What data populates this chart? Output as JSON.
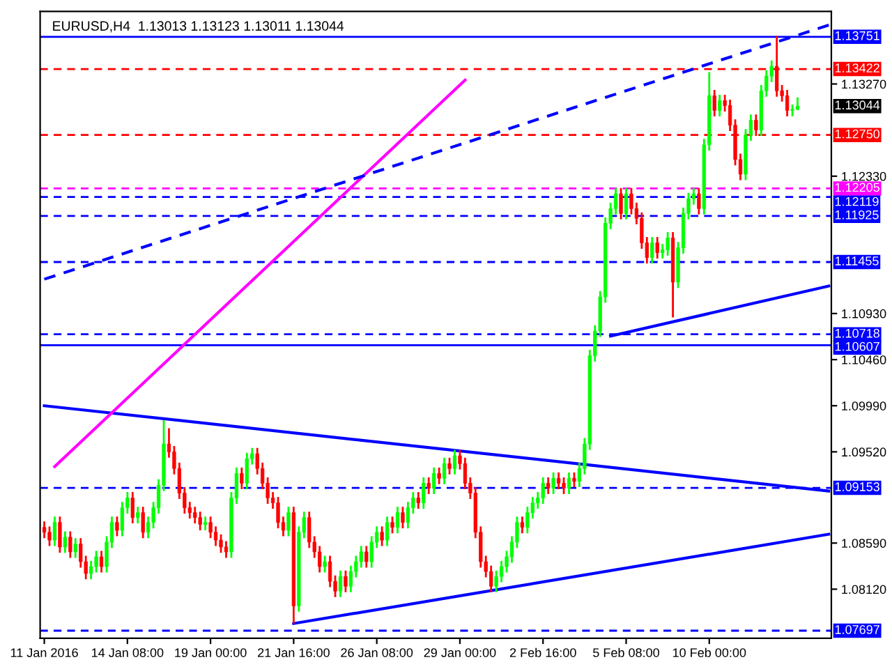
{
  "chart_data": {
    "type": "candlestick",
    "title": "EURUSD,H4  1.13013 1.13123 1.13011 1.13044",
    "categories": [
      "11 Jan 2016",
      null,
      null,
      null,
      null,
      null,
      null,
      null,
      null,
      null,
      null,
      null,
      null,
      null,
      null,
      null,
      "14 Jan 08:00",
      null,
      null,
      null,
      null,
      null,
      null,
      null,
      null,
      null,
      null,
      null,
      null,
      null,
      null,
      null,
      "19 Jan 00:00",
      null,
      null,
      null,
      null,
      null,
      null,
      null,
      null,
      null,
      null,
      null,
      null,
      null,
      null,
      null,
      "21 Jan 16:00",
      null,
      null,
      null,
      null,
      null,
      null,
      null,
      null,
      null,
      null,
      null,
      null,
      null,
      null,
      null,
      "26 Jan 08:00",
      null,
      null,
      null,
      null,
      null,
      null,
      null,
      null,
      null,
      null,
      null,
      null,
      null,
      null,
      null,
      "29 Jan 00:00",
      null,
      null,
      null,
      null,
      null,
      null,
      null,
      null,
      null,
      null,
      null,
      null,
      null,
      null,
      null,
      "2 Feb 16:00",
      null,
      null,
      null,
      null,
      null,
      null,
      null,
      null,
      null,
      null,
      null,
      null,
      null,
      null,
      null,
      "5 Feb 08:00",
      null,
      null,
      null,
      null,
      null,
      null,
      null,
      null,
      null,
      null,
      null,
      null,
      null,
      null,
      null,
      "10 Feb 00:00",
      null,
      null,
      null,
      null,
      null,
      null,
      null,
      null,
      null,
      null,
      null,
      null,
      null,
      null,
      null,
      null,
      null,
      null,
      null,
      null,
      null,
      null,
      null
    ],
    "ohlc": [
      [
        1.0875,
        1.088,
        1.0865,
        1.087
      ],
      [
        1.087,
        1.0875,
        1.0857,
        1.0862
      ],
      [
        1.0862,
        1.0885,
        1.0857,
        1.088
      ],
      [
        1.088,
        1.0885,
        1.085,
        1.0855
      ],
      [
        1.0855,
        1.087,
        1.085,
        1.0865
      ],
      [
        1.0865,
        1.087,
        1.0845,
        1.085
      ],
      [
        1.085,
        1.0863,
        1.0845,
        1.0858
      ],
      [
        1.0858,
        1.0863,
        1.0835,
        1.084
      ],
      [
        1.084,
        1.0845,
        1.0823,
        1.0828
      ],
      [
        1.0828,
        1.084,
        1.0823,
        1.0835
      ],
      [
        1.0835,
        1.085,
        1.083,
        1.0845
      ],
      [
        1.0845,
        1.085,
        1.083,
        1.0835
      ],
      [
        1.0835,
        1.0865,
        1.083,
        1.086
      ],
      [
        1.086,
        1.0885,
        1.0855,
        1.088
      ],
      [
        1.088,
        1.0885,
        1.0867,
        1.0872
      ],
      [
        1.0872,
        1.09,
        1.0867,
        1.0895
      ],
      [
        1.0895,
        1.091,
        1.089,
        1.0905
      ],
      [
        1.0905,
        1.091,
        1.088,
        1.0885
      ],
      [
        1.0885,
        1.0895,
        1.088,
        1.089
      ],
      [
        1.089,
        1.0895,
        1.0865,
        1.087
      ],
      [
        1.087,
        1.0885,
        1.0865,
        1.088
      ],
      [
        1.088,
        1.09,
        1.0875,
        1.0895
      ],
      [
        1.0895,
        1.0923,
        1.089,
        1.0918
      ],
      [
        1.0918,
        1.0983,
        1.0913,
        1.096
      ],
      [
        1.096,
        1.0975,
        1.0947,
        1.0952
      ],
      [
        1.0952,
        1.0957,
        1.093,
        1.0935
      ],
      [
        1.0935,
        1.094,
        1.0905,
        1.091
      ],
      [
        1.091,
        1.0915,
        1.089,
        1.0895
      ],
      [
        1.0895,
        1.09,
        1.0885,
        1.089
      ],
      [
        1.089,
        1.0895,
        1.088,
        1.0885
      ],
      [
        1.0885,
        1.089,
        1.0873,
        1.0878
      ],
      [
        1.0878,
        1.0885,
        1.0873,
        1.088
      ],
      [
        1.088,
        1.0885,
        1.0865,
        1.087
      ],
      [
        1.087,
        1.0875,
        1.0857,
        1.0862
      ],
      [
        1.0862,
        1.0867,
        1.085,
        1.0855
      ],
      [
        1.0855,
        1.086,
        1.0845,
        1.085
      ],
      [
        1.085,
        1.091,
        1.0845,
        1.0905
      ],
      [
        1.0905,
        1.0935,
        1.09,
        1.093
      ],
      [
        1.093,
        1.0935,
        1.0915,
        1.092
      ],
      [
        1.092,
        1.095,
        1.0915,
        1.0945
      ],
      [
        1.0945,
        1.0955,
        1.094,
        1.095
      ],
      [
        1.095,
        1.0955,
        1.093,
        1.0935
      ],
      [
        1.0935,
        1.094,
        1.0915,
        1.092
      ],
      [
        1.092,
        1.0925,
        1.09,
        1.0905
      ],
      [
        1.0905,
        1.091,
        1.0895,
        1.09
      ],
      [
        1.09,
        1.0905,
        1.0875,
        1.088
      ],
      [
        1.088,
        1.0885,
        1.0867,
        1.0872
      ],
      [
        1.0872,
        1.0895,
        1.0867,
        1.089
      ],
      [
        1.089,
        1.0895,
        1.0778,
        1.0795
      ],
      [
        1.0795,
        1.0875,
        1.079,
        1.087
      ],
      [
        1.087,
        1.089,
        1.0865,
        1.0885
      ],
      [
        1.0885,
        1.089,
        1.0855,
        1.086
      ],
      [
        1.086,
        1.0865,
        1.0845,
        1.085
      ],
      [
        1.085,
        1.0855,
        1.083,
        1.0835
      ],
      [
        1.0835,
        1.0845,
        1.083,
        1.084
      ],
      [
        1.084,
        1.0845,
        1.0815,
        1.082
      ],
      [
        1.082,
        1.0825,
        1.0805,
        1.081
      ],
      [
        1.081,
        1.083,
        1.0805,
        1.0825
      ],
      [
        1.0825,
        1.083,
        1.081,
        1.0815
      ],
      [
        1.0815,
        1.0835,
        1.081,
        1.083
      ],
      [
        1.083,
        1.0845,
        1.0825,
        1.084
      ],
      [
        1.084,
        1.0855,
        1.0835,
        1.085
      ],
      [
        1.085,
        1.0855,
        1.0835,
        1.084
      ],
      [
        1.084,
        1.0865,
        1.0835,
        1.086
      ],
      [
        1.086,
        1.0875,
        1.0855,
        1.087
      ],
      [
        1.087,
        1.0875,
        1.0857,
        1.0862
      ],
      [
        1.0862,
        1.0885,
        1.0857,
        1.088
      ],
      [
        1.088,
        1.0885,
        1.087,
        1.0875
      ],
      [
        1.0875,
        1.0895,
        1.087,
        1.089
      ],
      [
        1.089,
        1.0895,
        1.0875,
        1.088
      ],
      [
        1.088,
        1.09,
        1.0875,
        1.0895
      ],
      [
        1.0895,
        1.091,
        1.089,
        1.0905
      ],
      [
        1.0905,
        1.091,
        1.0895,
        1.09
      ],
      [
        1.09,
        1.0925,
        1.0895,
        1.092
      ],
      [
        1.092,
        1.0925,
        1.091,
        1.0915
      ],
      [
        1.0915,
        1.0935,
        1.091,
        1.093
      ],
      [
        1.093,
        1.0935,
        1.092,
        1.0925
      ],
      [
        1.0925,
        1.0945,
        1.092,
        1.094
      ],
      [
        1.094,
        1.0945,
        1.093,
        1.0935
      ],
      [
        1.0935,
        1.0953,
        1.093,
        1.0948
      ],
      [
        1.0948,
        1.0953,
        1.0935,
        1.094
      ],
      [
        1.094,
        1.0945,
        1.0915,
        1.092
      ],
      [
        1.092,
        1.0925,
        1.0905,
        1.091
      ],
      [
        1.091,
        1.0915,
        1.0865,
        1.087
      ],
      [
        1.087,
        1.0875,
        1.0835,
        1.084
      ],
      [
        1.084,
        1.0845,
        1.0825,
        1.083
      ],
      [
        1.083,
        1.0835,
        1.081,
        1.0815
      ],
      [
        1.0815,
        1.083,
        1.081,
        1.0825
      ],
      [
        1.0825,
        1.084,
        1.082,
        1.0835
      ],
      [
        1.0835,
        1.085,
        1.083,
        1.0845
      ],
      [
        1.0845,
        1.0865,
        1.084,
        1.086
      ],
      [
        1.086,
        1.0885,
        1.0855,
        1.088
      ],
      [
        1.088,
        1.0885,
        1.087,
        1.0875
      ],
      [
        1.0875,
        1.0895,
        1.087,
        1.089
      ],
      [
        1.089,
        1.0905,
        1.0885,
        1.09
      ],
      [
        1.09,
        1.091,
        1.0895,
        1.0905
      ],
      [
        1.0905,
        1.0925,
        1.09,
        1.092
      ],
      [
        1.092,
        1.0925,
        1.091,
        1.0915
      ],
      [
        1.0915,
        1.093,
        1.091,
        1.0925
      ],
      [
        1.0925,
        1.093,
        1.0915,
        1.092
      ],
      [
        1.092,
        1.0925,
        1.091,
        1.0915
      ],
      [
        1.0915,
        1.093,
        1.091,
        1.0925
      ],
      [
        1.0925,
        1.093,
        1.0917,
        1.0922
      ],
      [
        1.0922,
        1.094,
        1.0917,
        1.0935
      ],
      [
        1.0935,
        1.0965,
        1.093,
        1.096
      ],
      [
        1.096,
        1.1055,
        1.0955,
        1.105
      ],
      [
        1.105,
        1.108,
        1.1045,
        1.1075
      ],
      [
        1.1075,
        1.1115,
        1.107,
        1.111
      ],
      [
        1.111,
        1.119,
        1.1105,
        1.1185
      ],
      [
        1.1185,
        1.1205,
        1.118,
        1.12
      ],
      [
        1.12,
        1.122,
        1.1195,
        1.1215
      ],
      [
        1.1215,
        1.122,
        1.119,
        1.1195
      ],
      [
        1.1195,
        1.122,
        1.119,
        1.1215
      ],
      [
        1.1215,
        1.122,
        1.1195,
        1.12
      ],
      [
        1.12,
        1.1205,
        1.1185,
        1.119
      ],
      [
        1.119,
        1.1195,
        1.116,
        1.1165
      ],
      [
        1.1165,
        1.117,
        1.1145,
        1.115
      ],
      [
        1.115,
        1.117,
        1.1145,
        1.1165
      ],
      [
        1.1165,
        1.117,
        1.115,
        1.1155
      ],
      [
        1.1155,
        1.1163,
        1.115,
        1.1158
      ],
      [
        1.1158,
        1.1175,
        1.1153,
        1.117
      ],
      [
        1.117,
        1.1175,
        1.109,
        1.1125
      ],
      [
        1.1125,
        1.1165,
        1.112,
        1.116
      ],
      [
        1.116,
        1.12,
        1.1155,
        1.1195
      ],
      [
        1.1195,
        1.1215,
        1.119,
        1.121
      ],
      [
        1.121,
        1.122,
        1.1205,
        1.1215
      ],
      [
        1.1215,
        1.122,
        1.1195,
        1.12
      ],
      [
        1.12,
        1.127,
        1.1195,
        1.1265
      ],
      [
        1.1265,
        1.1338,
        1.126,
        1.1315
      ],
      [
        1.1315,
        1.132,
        1.1295,
        1.13
      ],
      [
        1.13,
        1.1315,
        1.1295,
        1.131
      ],
      [
        1.131,
        1.1315,
        1.13,
        1.1305
      ],
      [
        1.1305,
        1.131,
        1.128,
        1.1285
      ],
      [
        1.1285,
        1.129,
        1.1245,
        1.125
      ],
      [
        1.125,
        1.1255,
        1.123,
        1.1235
      ],
      [
        1.1235,
        1.128,
        1.123,
        1.1275
      ],
      [
        1.1275,
        1.1295,
        1.127,
        1.129
      ],
      [
        1.129,
        1.1295,
        1.1275,
        1.128
      ],
      [
        1.128,
        1.1325,
        1.1275,
        1.132
      ],
      [
        1.132,
        1.134,
        1.1315,
        1.1335
      ],
      [
        1.1335,
        1.135,
        1.133,
        1.1345
      ],
      [
        1.1345,
        1.13751,
        1.1315,
        1.132
      ],
      [
        1.132,
        1.1325,
        1.131,
        1.1315
      ],
      [
        1.1315,
        1.132,
        1.1295,
        1.13
      ],
      [
        1.13,
        1.1305,
        1.1295,
        1.1301
      ],
      [
        1.13013,
        1.13123,
        1.13011,
        1.13044
      ],
      null,
      null,
      null,
      null,
      null,
      null
    ],
    "colors": [
      "#ff0000",
      "#ff0000",
      "#00ff00",
      "#ff0000",
      "#00ff00",
      "#ff0000",
      "#00ff00",
      "#ff0000",
      "#ff0000",
      "#00ff00",
      "#00ff00",
      "#ff0000",
      "#00ff00",
      "#00ff00",
      "#ff0000",
      "#00ff00",
      "#00ff00",
      "#ff0000",
      "#00ff00",
      "#ff0000",
      "#00ff00",
      "#00ff00",
      "#00ff00",
      "#00ff00",
      "#ff0000",
      "#ff0000",
      "#ff0000",
      "#ff0000",
      "#ff0000",
      "#ff0000",
      "#ff0000",
      "#00ff00",
      "#ff0000",
      "#ff0000",
      "#ff0000",
      "#ff0000",
      "#00ff00",
      "#00ff00",
      "#ff0000",
      "#00ff00",
      "#00ff00",
      "#ff0000",
      "#ff0000",
      "#ff0000",
      "#ff0000",
      "#ff0000",
      "#ff0000",
      "#00ff00",
      "#ff0000",
      "#00ff00",
      "#00ff00",
      "#ff0000",
      "#ff0000",
      "#ff0000",
      "#00ff00",
      "#ff0000",
      "#ff0000",
      "#00ff00",
      "#ff0000",
      "#00ff00",
      "#00ff00",
      "#00ff00",
      "#ff0000",
      "#00ff00",
      "#00ff00",
      "#ff0000",
      "#00ff00",
      "#ff0000",
      "#00ff00",
      "#ff0000",
      "#00ff00",
      "#00ff00",
      "#ff0000",
      "#00ff00",
      "#ff0000",
      "#00ff00",
      "#ff0000",
      "#00ff00",
      "#ff0000",
      "#00ff00",
      "#ff0000",
      "#ff0000",
      "#ff0000",
      "#ff0000",
      "#ff0000",
      "#ff0000",
      "#ff0000",
      "#00ff00",
      "#00ff00",
      "#00ff00",
      "#00ff00",
      "#00ff00",
      "#ff0000",
      "#00ff00",
      "#00ff00",
      "#00ff00",
      "#00ff00",
      "#ff0000",
      "#00ff00",
      "#ff0000",
      "#ff0000",
      "#00ff00",
      "#ff0000",
      "#00ff00",
      "#00ff00",
      "#00ff00",
      "#00ff00",
      "#00ff00",
      "#00ff00",
      "#00ff00",
      "#00ff00",
      "#ff0000",
      "#00ff00",
      "#ff0000",
      "#ff0000",
      "#ff0000",
      "#ff0000",
      "#00ff00",
      "#ff0000",
      "#00ff00",
      "#00ff00",
      "#ff0000",
      "#00ff00",
      "#00ff00",
      "#00ff00",
      "#00ff00",
      "#ff0000",
      "#00ff00",
      "#00ff00",
      "#ff0000",
      "#00ff00",
      "#ff0000",
      "#ff0000",
      "#ff0000",
      "#ff0000",
      "#00ff00",
      "#00ff00",
      "#ff0000",
      "#00ff00",
      "#00ff00",
      "#00ff00",
      "#ff0000",
      "#ff0000",
      "#ff0000",
      "#00ff00",
      "#00ff00",
      null,
      null,
      null,
      null,
      null,
      null
    ],
    "series": [
      {
        "type": "line",
        "color": "#0000ff",
        "line_style": "solid",
        "values": [
          1.0999,
          null,
          null,
          null,
          null,
          null,
          null,
          null,
          null,
          null,
          null,
          null,
          null,
          null,
          null,
          null,
          null,
          null,
          null,
          null,
          null,
          null,
          null,
          null,
          null,
          null,
          null,
          null,
          null,
          null,
          null,
          null,
          null,
          null,
          null,
          null,
          null,
          null,
          null,
          null,
          null,
          null,
          null,
          null,
          null,
          null,
          null,
          null,
          null,
          null,
          null,
          null,
          null,
          null,
          null,
          null,
          null,
          null,
          null,
          null,
          null,
          null,
          null,
          null,
          null,
          null,
          null,
          null,
          null,
          null,
          null,
          null,
          null,
          null,
          null,
          null,
          null,
          null,
          null,
          null,
          null,
          null,
          null,
          null,
          null,
          null,
          null,
          null,
          null,
          null,
          null,
          null,
          null,
          null,
          null,
          null,
          null,
          null,
          null,
          null,
          null,
          null,
          null,
          null,
          null,
          null,
          null,
          null,
          null,
          null,
          null,
          null,
          null,
          null,
          null,
          null,
          null,
          null,
          null,
          null,
          null,
          null,
          null,
          null,
          null,
          null,
          null,
          null,
          null,
          null,
          null,
          null,
          null,
          null,
          null,
          null,
          null,
          null,
          null,
          null,
          null,
          null,
          null,
          null,
          null,
          null,
          null,
          null,
          null,
          null,
          null,
          1.0912
        ]
      },
      {
        "type": "line",
        "color": "#0000ff",
        "line_style": "solid",
        "values": [
          null,
          null,
          null,
          null,
          null,
          null,
          null,
          null,
          null,
          null,
          null,
          null,
          null,
          null,
          null,
          null,
          null,
          null,
          null,
          null,
          null,
          null,
          null,
          null,
          null,
          null,
          null,
          null,
          null,
          null,
          null,
          null,
          null,
          null,
          null,
          null,
          null,
          null,
          null,
          null,
          null,
          null,
          null,
          null,
          null,
          null,
          null,
          null,
          1.0777,
          null,
          null,
          null,
          null,
          null,
          null,
          null,
          null,
          null,
          null,
          null,
          null,
          null,
          null,
          null,
          null,
          null,
          null,
          null,
          null,
          null,
          null,
          null,
          null,
          null,
          null,
          null,
          null,
          null,
          null,
          null,
          null,
          null,
          null,
          null,
          null,
          null,
          null,
          null,
          null,
          null,
          null,
          null,
          null,
          null,
          null,
          null,
          null,
          null,
          null,
          null,
          null,
          null,
          null,
          null,
          null,
          null,
          null,
          null,
          null,
          null,
          null,
          null,
          null,
          null,
          null,
          null,
          null,
          null,
          null,
          null,
          null,
          null,
          null,
          null,
          null,
          null,
          null,
          null,
          null,
          null,
          null,
          null,
          null,
          null,
          null,
          null,
          null,
          null,
          null,
          null,
          null,
          null,
          null,
          null,
          null,
          null,
          null,
          null,
          null,
          null,
          null,
          1.0868
        ]
      },
      {
        "type": "line",
        "color": "#0000ff",
        "line_style": "solid",
        "values": [
          null,
          null,
          null,
          null,
          null,
          null,
          null,
          null,
          null,
          null,
          null,
          null,
          null,
          null,
          null,
          null,
          null,
          null,
          null,
          null,
          null,
          null,
          null,
          null,
          null,
          null,
          null,
          null,
          null,
          null,
          null,
          null,
          null,
          null,
          null,
          null,
          null,
          null,
          null,
          null,
          null,
          null,
          null,
          null,
          null,
          null,
          null,
          null,
          null,
          null,
          null,
          null,
          null,
          null,
          null,
          null,
          null,
          null,
          null,
          null,
          null,
          null,
          null,
          null,
          null,
          null,
          null,
          null,
          null,
          null,
          null,
          null,
          null,
          null,
          null,
          null,
          null,
          null,
          null,
          null,
          null,
          null,
          null,
          null,
          null,
          null,
          null,
          null,
          null,
          null,
          null,
          null,
          null,
          null,
          null,
          null,
          null,
          null,
          null,
          null,
          null,
          null,
          null,
          null,
          null,
          null,
          null,
          null,
          null,
          1.107,
          null,
          null,
          null,
          null,
          null,
          null,
          null,
          null,
          null,
          null,
          null,
          null,
          null,
          null,
          null,
          null,
          null,
          null,
          null,
          null,
          null,
          null,
          null,
          null,
          null,
          null,
          null,
          null,
          null,
          null,
          null,
          null,
          null,
          null,
          null,
          null,
          null,
          null,
          null,
          null,
          null,
          1.1121
        ]
      },
      {
        "type": "line",
        "color": "#ff00ff",
        "line_style": "solid",
        "values": [
          null,
          null,
          1.0937,
          null,
          null,
          null,
          null,
          null,
          null,
          null,
          null,
          null,
          null,
          null,
          null,
          null,
          null,
          null,
          null,
          null,
          null,
          null,
          null,
          null,
          null,
          null,
          null,
          null,
          null,
          null,
          null,
          null,
          null,
          null,
          null,
          null,
          null,
          null,
          null,
          null,
          null,
          null,
          null,
          null,
          null,
          null,
          null,
          null,
          null,
          null,
          null,
          null,
          null,
          null,
          null,
          null,
          null,
          null,
          null,
          null,
          null,
          null,
          null,
          null,
          null,
          null,
          null,
          null,
          null,
          null,
          null,
          null,
          null,
          null,
          null,
          null,
          null,
          null,
          null,
          null,
          null,
          1.1331,
          null,
          null,
          null,
          null,
          null,
          null,
          null,
          null,
          null,
          null,
          null,
          null,
          null,
          null,
          null,
          null,
          null,
          null,
          null,
          null,
          null,
          null,
          null,
          null,
          null,
          null,
          null,
          null,
          null,
          null,
          null,
          null,
          null,
          null,
          null,
          null,
          null,
          null,
          null,
          null,
          null,
          null,
          null,
          null,
          null,
          null,
          null,
          null,
          null,
          null,
          null,
          null,
          null,
          null,
          null,
          null,
          null,
          null,
          null,
          null,
          null,
          null,
          null,
          null,
          null,
          null,
          null,
          null,
          null,
          null
        ]
      },
      {
        "type": "line",
        "color": "#0000ff",
        "line_style": "dashed",
        "values": [
          1.1128,
          null,
          null,
          null,
          null,
          null,
          null,
          null,
          null,
          null,
          null,
          null,
          null,
          null,
          null,
          null,
          null,
          null,
          null,
          null,
          null,
          null,
          null,
          null,
          null,
          null,
          null,
          null,
          null,
          null,
          null,
          null,
          null,
          null,
          null,
          null,
          null,
          null,
          null,
          null,
          null,
          null,
          null,
          null,
          null,
          null,
          null,
          null,
          null,
          null,
          null,
          null,
          null,
          null,
          null,
          null,
          null,
          null,
          null,
          null,
          null,
          null,
          null,
          null,
          null,
          null,
          null,
          null,
          null,
          null,
          null,
          null,
          null,
          null,
          null,
          null,
          null,
          null,
          null,
          null,
          null,
          null,
          null,
          null,
          null,
          null,
          null,
          null,
          null,
          null,
          null,
          null,
          null,
          null,
          null,
          null,
          null,
          null,
          null,
          null,
          null,
          null,
          null,
          null,
          null,
          null,
          null,
          null,
          null,
          null,
          null,
          null,
          null,
          null,
          null,
          null,
          null,
          null,
          null,
          null,
          null,
          null,
          null,
          null,
          null,
          null,
          null,
          null,
          null,
          null,
          null,
          null,
          null,
          null,
          null,
          null,
          null,
          null,
          null,
          null,
          null,
          null,
          null,
          null,
          null,
          null,
          null,
          null,
          null,
          null,
          null,
          1.1387
        ]
      }
    ],
    "ref_lines": [
      {
        "axis": "y",
        "value": 1.13751,
        "label": "1.13751",
        "color": "#0000ff",
        "line_style": "solid"
      },
      {
        "axis": "y",
        "value": 1.13422,
        "label": "1.13422",
        "color": "#ff0000",
        "line_style": "dashed"
      },
      {
        "axis": "y",
        "value": 1.1275,
        "label": "1.12750",
        "color": "#ff0000",
        "line_style": "dashed"
      },
      {
        "axis": "y",
        "value": 1.12205,
        "label": "1.12205",
        "color": "#ff00ff",
        "line_style": "dashed"
      },
      {
        "axis": "y",
        "value": 1.12119,
        "label": "1.12119",
        "color": "#0000ff",
        "line_style": "dashed"
      },
      {
        "axis": "y",
        "value": 1.11925,
        "label": "1.11925",
        "color": "#0000ff",
        "line_style": "dashed"
      },
      {
        "axis": "y",
        "value": 1.11455,
        "label": "1.11455",
        "color": "#0000ff",
        "line_style": "dashed"
      },
      {
        "axis": "y",
        "value": 1.10718,
        "label": "1.10718",
        "color": "#0000ff",
        "line_style": "dashed"
      },
      {
        "axis": "y",
        "value": 1.10607,
        "label": "1.10607",
        "color": "#0000ff",
        "line_style": "solid"
      },
      {
        "axis": "y",
        "value": 1.09153,
        "label": "1.09153",
        "color": "#0000ff",
        "line_style": "dashed"
      },
      {
        "axis": "y",
        "value": 1.07697,
        "label": "1.07697",
        "color": "#0000ff",
        "line_style": "dashed"
      }
    ],
    "annotations": [
      "1.13044"
    ],
    "ylim": [
      1.0762,
      1.1401
    ],
    "yticks": [
      {
        "value": 1.1327,
        "label": "1.13270"
      },
      {
        "value": 1.1233,
        "label": "1.12330"
      },
      {
        "value": 1.1093,
        "label": "1.10930"
      },
      {
        "value": 1.1046,
        "label": "1.10460"
      },
      {
        "value": 1.0999,
        "label": "1.09990"
      },
      {
        "value": 1.0952,
        "label": "1.09520"
      },
      {
        "value": 1.0859,
        "label": "1.08590"
      },
      {
        "value": 1.0812,
        "label": "1.08120"
      }
    ],
    "grid": false
  }
}
